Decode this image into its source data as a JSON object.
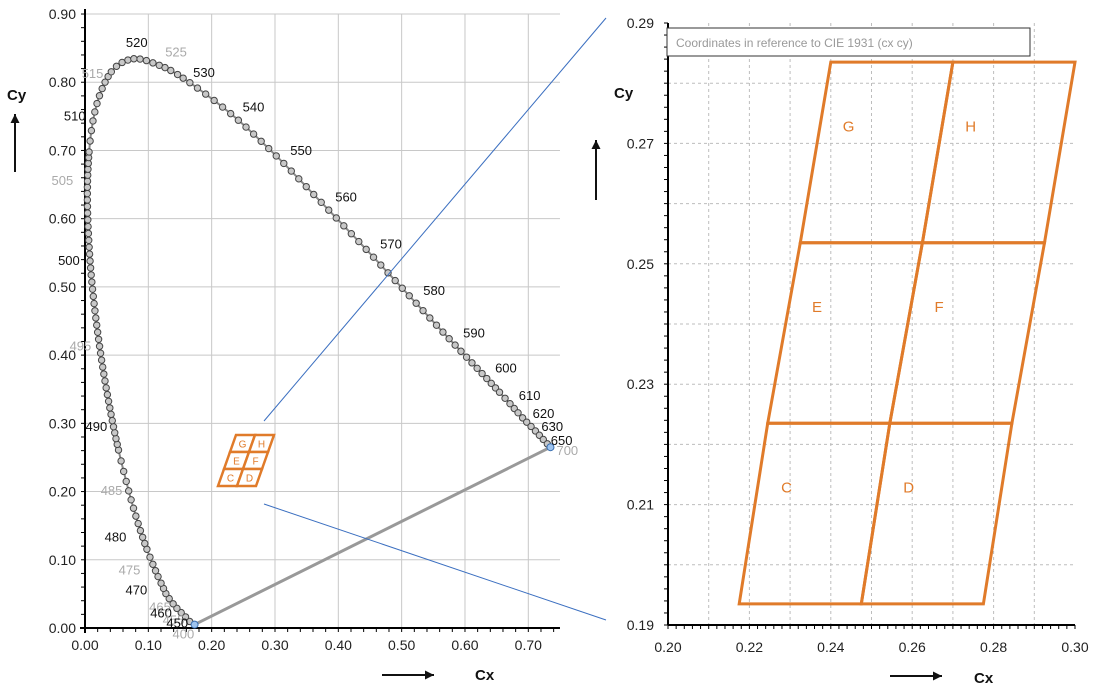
{
  "chart_data": [
    {
      "type": "scatter",
      "name": "CIE 1931 chromaticity diagram",
      "xlabel": "Cx",
      "ylabel": "Cy",
      "xlim": [
        0.0,
        0.75
      ],
      "ylim": [
        0.0,
        0.9
      ],
      "xticks": [
        "0.00",
        "0.10",
        "0.20",
        "0.30",
        "0.40",
        "0.50",
        "0.60",
        "0.70"
      ],
      "yticks": [
        "0.00",
        "0.10",
        "0.20",
        "0.30",
        "0.40",
        "0.50",
        "0.60",
        "0.70",
        "0.80",
        "0.90"
      ],
      "grid": true,
      "spectral_locus_labels": [
        {
          "nm": "520",
          "x": 0.074,
          "y": 0.834,
          "shown": true
        },
        {
          "nm": "525",
          "x": 0.114,
          "y": 0.826,
          "shown": false
        },
        {
          "nm": "530",
          "x": 0.155,
          "y": 0.806,
          "shown": true
        },
        {
          "nm": "540",
          "x": 0.23,
          "y": 0.754,
          "shown": true
        },
        {
          "nm": "550",
          "x": 0.302,
          "y": 0.692,
          "shown": true
        },
        {
          "nm": "560",
          "x": 0.373,
          "y": 0.624,
          "shown": true
        },
        {
          "nm": "570",
          "x": 0.444,
          "y": 0.555,
          "shown": true
        },
        {
          "nm": "580",
          "x": 0.512,
          "y": 0.487,
          "shown": true
        },
        {
          "nm": "590",
          "x": 0.575,
          "y": 0.424,
          "shown": true
        },
        {
          "nm": "600",
          "x": 0.627,
          "y": 0.373,
          "shown": true
        },
        {
          "nm": "610",
          "x": 0.666,
          "y": 0.334,
          "shown": true
        },
        {
          "nm": "620",
          "x": 0.691,
          "y": 0.308,
          "shown": true
        },
        {
          "nm": "630",
          "x": 0.708,
          "y": 0.292,
          "shown": true
        },
        {
          "nm": "650",
          "x": 0.726,
          "y": 0.274,
          "shown": true
        },
        {
          "nm": "700",
          "x": 0.735,
          "y": 0.265,
          "shown": false
        },
        {
          "nm": "515",
          "x": 0.039,
          "y": 0.812,
          "shown": false
        },
        {
          "nm": "510",
          "x": 0.014,
          "y": 0.75,
          "shown": true
        },
        {
          "nm": "505",
          "x": 0.004,
          "y": 0.655,
          "shown": false
        },
        {
          "nm": "500",
          "x": 0.008,
          "y": 0.538,
          "shown": true
        },
        {
          "nm": "495",
          "x": 0.023,
          "y": 0.413,
          "shown": false
        },
        {
          "nm": "490",
          "x": 0.045,
          "y": 0.295,
          "shown": true
        },
        {
          "nm": "485",
          "x": 0.069,
          "y": 0.201,
          "shown": false
        },
        {
          "nm": "480",
          "x": 0.091,
          "y": 0.133,
          "shown": true
        },
        {
          "nm": "475",
          "x": 0.11,
          "y": 0.087,
          "shown": false
        },
        {
          "nm": "470",
          "x": 0.124,
          "y": 0.058,
          "shown": true
        },
        {
          "nm": "465",
          "x": 0.136,
          "y": 0.036,
          "shown": false
        },
        {
          "nm": "460",
          "x": 0.144,
          "y": 0.03,
          "shown": true
        },
        {
          "nm": "455",
          "x": 0.151,
          "y": 0.023,
          "shown": false
        },
        {
          "nm": "450",
          "x": 0.157,
          "y": 0.018,
          "shown": true
        },
        {
          "nm": "400",
          "x": 0.173,
          "y": 0.005,
          "shown": false
        }
      ],
      "purple_line": [
        [
          0.173,
          0.005
        ],
        [
          0.735,
          0.265
        ]
      ],
      "inset_bins": [
        "C",
        "D",
        "E",
        "F",
        "G",
        "H"
      ]
    },
    {
      "type": "scatter",
      "name": "Bin zoom",
      "annotation": "Coordinates in reference to CIE 1931 (cx cy)",
      "xlabel": "Cx",
      "ylabel": "Cy",
      "xlim": [
        0.2,
        0.3
      ],
      "ylim": [
        0.19,
        0.29
      ],
      "xticks": [
        "0.20",
        "0.22",
        "0.24",
        "0.26",
        "0.28",
        "0.30"
      ],
      "yticks": [
        "0.19",
        "0.21",
        "0.23",
        "0.25",
        "0.27",
        "0.29"
      ],
      "grid": true,
      "bins": [
        {
          "label": "C",
          "corners": [
            [
              0.2175,
              0.1935
            ],
            [
              0.2475,
              0.1935
            ],
            [
              0.2545,
              0.2235
            ],
            [
              0.2245,
              0.2235
            ]
          ]
        },
        {
          "label": "D",
          "corners": [
            [
              0.2475,
              0.1935
            ],
            [
              0.2775,
              0.1935
            ],
            [
              0.2845,
              0.2235
            ],
            [
              0.2545,
              0.2235
            ]
          ]
        },
        {
          "label": "E",
          "corners": [
            [
              0.2245,
              0.2235
            ],
            [
              0.2545,
              0.2235
            ],
            [
              0.2625,
              0.2535
            ],
            [
              0.2325,
              0.2535
            ]
          ]
        },
        {
          "label": "F",
          "corners": [
            [
              0.2545,
              0.2235
            ],
            [
              0.2845,
              0.2235
            ],
            [
              0.2925,
              0.2535
            ],
            [
              0.2625,
              0.2535
            ]
          ]
        },
        {
          "label": "G",
          "corners": [
            [
              0.2325,
              0.2535
            ],
            [
              0.2625,
              0.2535
            ],
            [
              0.27,
              0.2835
            ],
            [
              0.24,
              0.2835
            ]
          ]
        },
        {
          "label": "H",
          "corners": [
            [
              0.2625,
              0.2535
            ],
            [
              0.2925,
              0.2535
            ],
            [
              0.3,
              0.2835
            ],
            [
              0.27,
              0.2835
            ]
          ]
        }
      ]
    }
  ]
}
